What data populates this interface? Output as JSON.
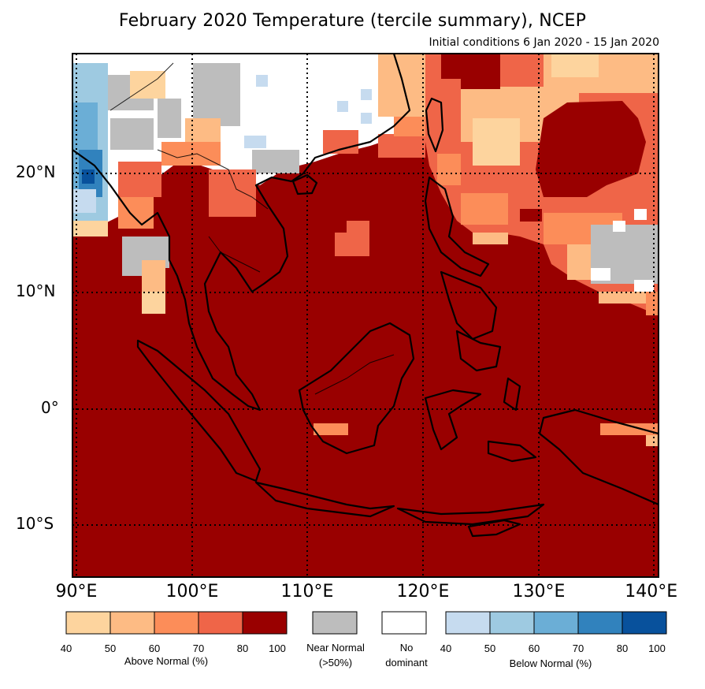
{
  "title": "February 2020 Temperature (tercile summary), NCEP",
  "subtitle": "Initial conditions 6 Jan 2020 - 15 Jan 2020",
  "latitude_labels": [
    "20°N",
    "10°N",
    "0°",
    "10°S"
  ],
  "longitude_labels": [
    "90°E",
    "100°E",
    "110°E",
    "120°E",
    "130°E",
    "140°E"
  ],
  "colors": {
    "above": [
      "#fdd49e",
      "#fdbb84",
      "#fc8d59",
      "#ef6548",
      "#990000"
    ],
    "below": [
      "#c6dbef",
      "#9ecae1",
      "#6baed6",
      "#3182bd",
      "#08519c"
    ],
    "near_normal": "#bdbdbd",
    "no_dominant": "#ffffff",
    "coastline": "#000000"
  },
  "legend": {
    "above": {
      "ticks": [
        "40",
        "50",
        "60",
        "70",
        "80",
        "100"
      ],
      "caption": "Above Normal (%)"
    },
    "near_normal": {
      "caption_line1": "Near Normal",
      "caption_line2": "(>50%)"
    },
    "no_dominant": {
      "caption_line1": "No",
      "caption_line2": "dominant"
    },
    "below": {
      "ticks": [
        "40",
        "50",
        "60",
        "70",
        "80",
        "100"
      ],
      "caption": "Below Normal (%)"
    }
  }
}
